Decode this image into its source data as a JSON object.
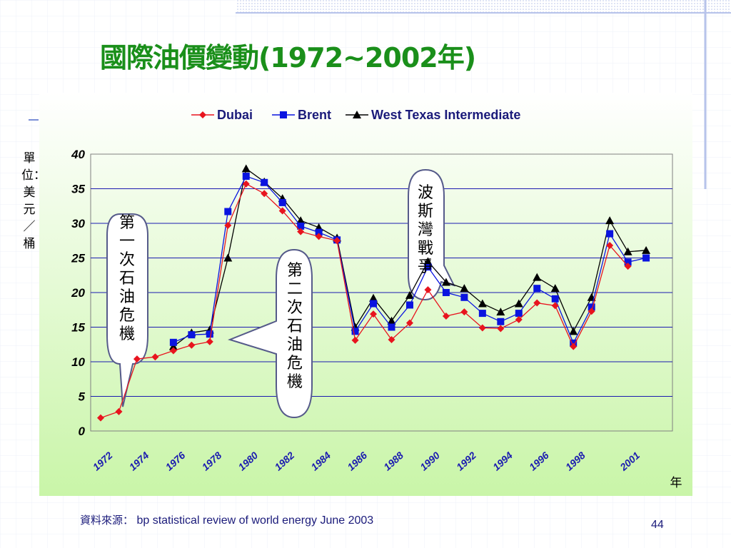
{
  "slide": {
    "title": "國際油價變動(1972~2002年)",
    "unit_label": "單位：美元／桶",
    "source_label": "資料來源：",
    "source_text": "bp statistical review of world energy June 2003",
    "page_number": "44"
  },
  "annotations": {
    "first_crisis": "第一次石油危機",
    "second_crisis": "第二次石油危機",
    "gulf_war": "波斯灣戰爭"
  },
  "chart_data": {
    "type": "line",
    "title": "",
    "xlabel": "年",
    "ylabel": "",
    "ylim": [
      0,
      40
    ],
    "yticks": [
      0,
      5,
      10,
      15,
      20,
      25,
      30,
      35,
      40
    ],
    "xticklabels": [
      "1972",
      "1974",
      "1976",
      "1978",
      "1980",
      "1982",
      "1984",
      "1986",
      "1988",
      "1990",
      "1992",
      "1994",
      "1996",
      "1998",
      "2001"
    ],
    "x": [
      1972,
      1973,
      1974,
      1975,
      1976,
      1977,
      1978,
      1979,
      1980,
      1981,
      1982,
      1983,
      1984,
      1985,
      1986,
      1987,
      1988,
      1989,
      1990,
      1991,
      1992,
      1993,
      1994,
      1995,
      1996,
      1997,
      1998,
      1999,
      2000,
      2001,
      2002
    ],
    "grid": "horizontal",
    "legend": "top",
    "series": [
      {
        "name": "Dubai",
        "color": "#e8141e",
        "marker": "diamond",
        "values": [
          1.9,
          2.8,
          10.4,
          10.7,
          11.6,
          12.4,
          12.9,
          29.7,
          35.7,
          34.3,
          31.8,
          28.8,
          28.1,
          27.5,
          13.1,
          16.9,
          13.2,
          15.6,
          20.4,
          16.6,
          17.2,
          14.9,
          14.8,
          16.1,
          18.5,
          18.1,
          12.2,
          17.3,
          26.8,
          23.8,
          null
        ],
        "values_shifted_note": ""
      },
      {
        "name": "Brent",
        "color": "#0a14e0",
        "marker": "square",
        "values": [
          null,
          null,
          null,
          null,
          12.8,
          13.9,
          14.0,
          31.7,
          36.8,
          35.9,
          33.0,
          29.6,
          28.7,
          27.6,
          14.4,
          18.4,
          15.0,
          18.2,
          23.7,
          20.0,
          19.3,
          17.0,
          15.8,
          17.0,
          20.6,
          19.1,
          12.7,
          17.9,
          28.5,
          24.4,
          25.0
        ],
        "values_shifted_note": ""
      },
      {
        "name": "West Texas Intermediate",
        "color": "#000000",
        "marker": "triangle",
        "values": [
          null,
          null,
          null,
          null,
          12.2,
          14.2,
          14.6,
          25.0,
          37.9,
          36.0,
          33.6,
          30.4,
          29.4,
          27.9,
          15.0,
          19.2,
          15.9,
          19.6,
          24.5,
          21.5,
          20.6,
          18.4,
          17.2,
          18.4,
          22.2,
          20.6,
          14.4,
          19.3,
          30.4,
          25.9,
          26.1
        ],
        "values_shifted_note": ""
      }
    ]
  }
}
